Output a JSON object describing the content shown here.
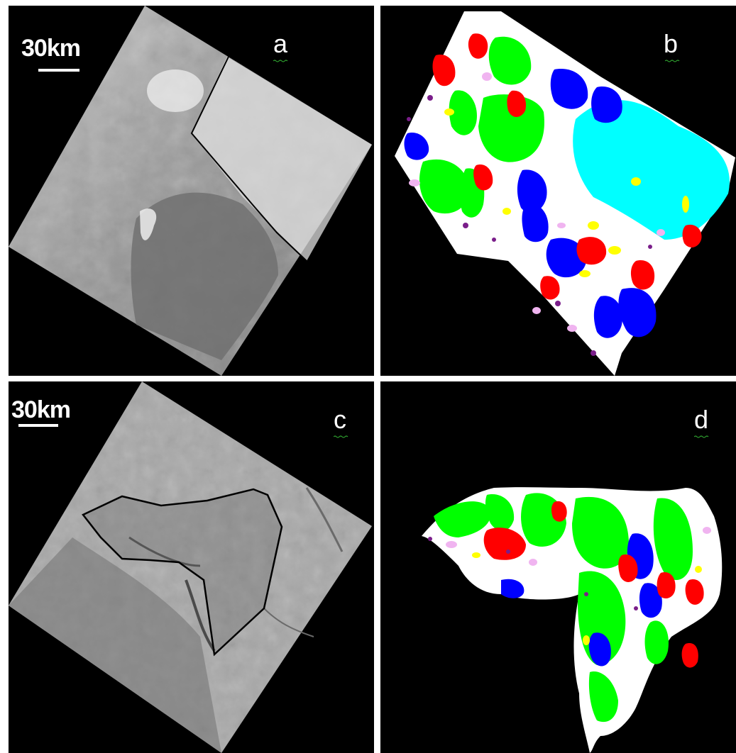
{
  "panels": {
    "a": {
      "label": "a",
      "scale_label": "30km"
    },
    "b": {
      "label": "b"
    },
    "c": {
      "label": "c",
      "scale_label": "30km"
    },
    "d": {
      "label": "d"
    }
  },
  "colors": {
    "background": "#000000",
    "floe_green": "#00ff00",
    "floe_red": "#ff0000",
    "floe_blue": "#0000ff",
    "floe_cyan": "#00ffff",
    "floe_yellow": "#ffff00",
    "floe_pink": "#f0b4f0",
    "floe_purple": "#7a1e8a",
    "squiggle": "#2e9e2e"
  }
}
